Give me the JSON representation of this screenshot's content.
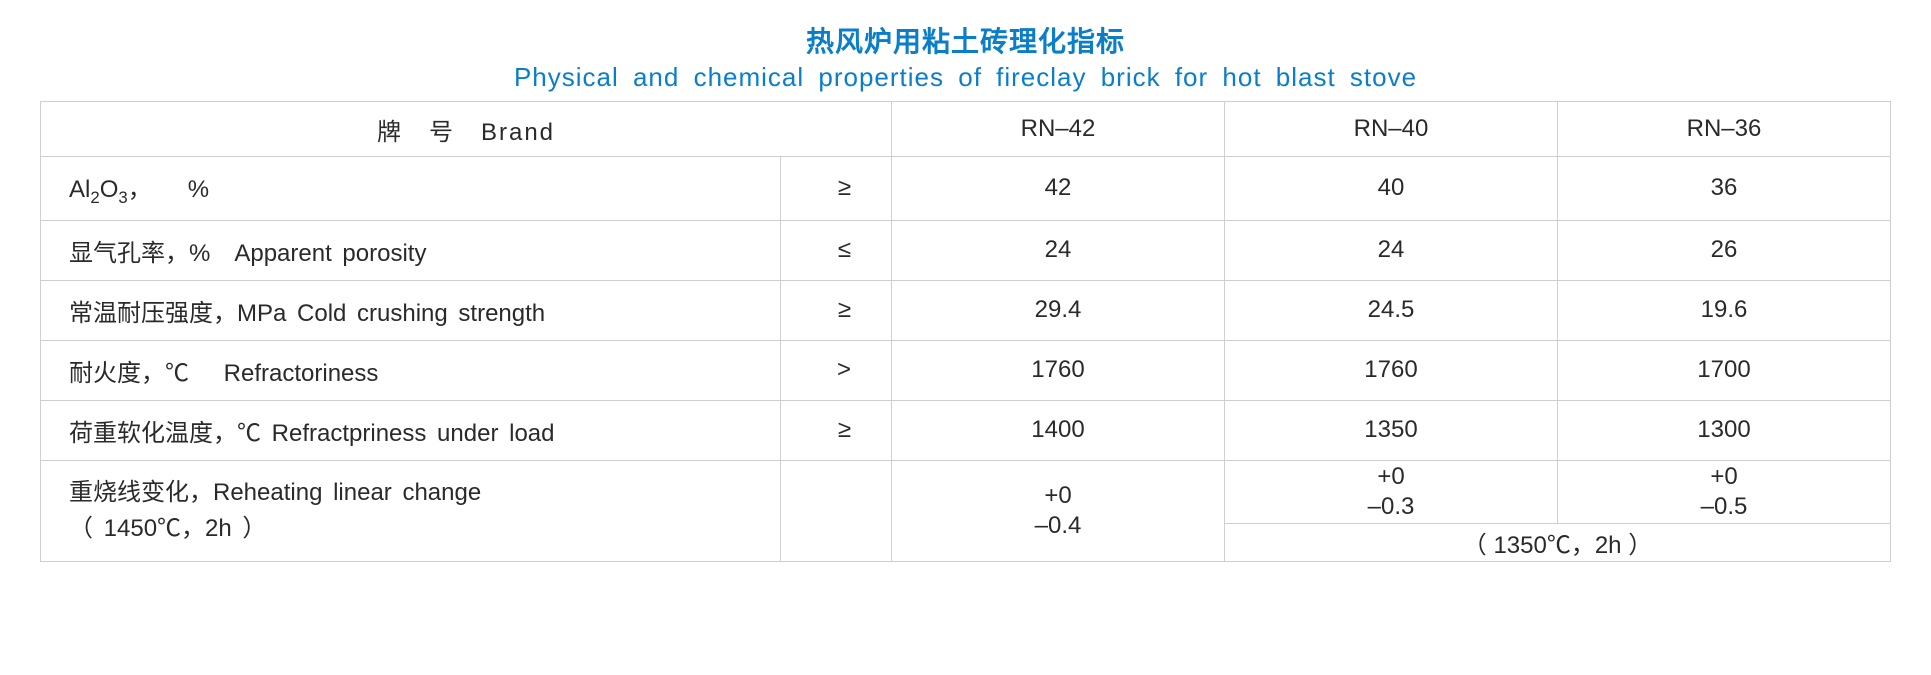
{
  "colors": {
    "title": "#0a7ec9",
    "text": "#2a2a2a",
    "border": "#cfcfcf",
    "background": "#ffffff"
  },
  "typography": {
    "title_cn_fontsize": 28,
    "title_en_fontsize": 26,
    "cell_fontsize": 24
  },
  "title": {
    "cn": "热风炉用粘土砖理化指标",
    "en": "Physical  and  chemical  properties  of  fireclay  brick  for  hot  blast  stove"
  },
  "header": {
    "brand_label": "牌　号　Brand",
    "brands": [
      "RN–42",
      "RN–40",
      "RN–36"
    ]
  },
  "rows": {
    "al2o3": {
      "label_prefix": "Al",
      "label_sub1": "2",
      "label_mid": "O",
      "label_sub2": "3",
      "label_suffix": "，　　%",
      "op": "≥",
      "v": [
        "42",
        "40",
        "36"
      ]
    },
    "porosity": {
      "label": "显气孔率，%　Apparent  porosity",
      "op": "≤",
      "v": [
        "24",
        "24",
        "26"
      ]
    },
    "ccs": {
      "label": "常温耐压强度，MPa  Cold  crushing  strength",
      "op": "≥",
      "v": [
        "29.4",
        "24.5",
        "19.6"
      ]
    },
    "refractoriness": {
      "label": "耐火度，℃　 Refractoriness",
      "op": ">",
      "v": [
        "1760",
        "1760",
        "1700"
      ]
    },
    "rul": {
      "label": "荷重软化温度，℃ Refractpriness  under  load",
      "op": "≥",
      "v": [
        "1400",
        "1350",
        "1300"
      ]
    },
    "rlc": {
      "label_line1": "重烧线变化，Reheating  linear  change",
      "label_line2": "（ 1450℃，2h ）",
      "op": "",
      "col1_top": "+0",
      "col1_bot": "–0.4",
      "col2_top": "+0",
      "col2_bot": "–0.3",
      "col3_top": "+0",
      "col3_bot": "–0.5",
      "footer_condition": "（ 1350℃，2h ）"
    }
  }
}
